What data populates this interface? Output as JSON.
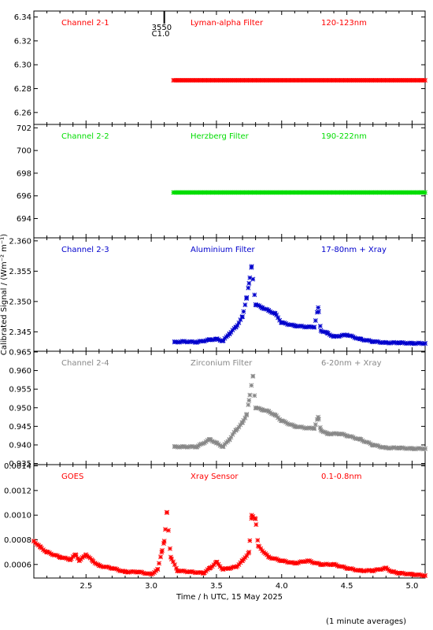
{
  "chart_data": [
    {
      "type": "scatter",
      "channel": "Channel 2-1",
      "filter": "Lyman-alpha Filter",
      "band": "120-123nm",
      "color": "#ff0000",
      "ylim": [
        6.25,
        6.345
      ],
      "yticks": [
        "6.34",
        "6.32",
        "6.30",
        "6.28",
        "6.26"
      ],
      "marker": {
        "x": 3.1,
        "labels": [
          "3550",
          "C1.0"
        ]
      },
      "series": [
        {
          "x_start": 3.17,
          "x_end": 5.1,
          "values": [
            6.287,
            6.287
          ]
        }
      ]
    },
    {
      "type": "scatter",
      "channel": "Channel 2-2",
      "filter": "Herzberg Filter",
      "band": "190-222nm",
      "color": "#00dd00",
      "ylim": [
        692.3,
        702.3
      ],
      "yticks": [
        "702",
        "700",
        "698",
        "696",
        "694"
      ],
      "series": [
        {
          "x_start": 3.17,
          "x_end": 5.1,
          "values": [
            696.3,
            696.3
          ]
        }
      ]
    },
    {
      "type": "scatter",
      "channel": "Channel 2-3",
      "filter": "Aluminium Filter",
      "band": "17-80nm + Xray",
      "color": "#0000cc",
      "ylim": [
        2.3418,
        2.3605
      ],
      "yticks": [
        "2.360",
        "2.355",
        "2.350",
        "2.345"
      ],
      "points": [
        [
          3.18,
          2.3433
        ],
        [
          3.25,
          2.3434
        ],
        [
          3.35,
          2.3433
        ],
        [
          3.45,
          2.3437
        ],
        [
          3.5,
          2.3438
        ],
        [
          3.55,
          2.3435
        ],
        [
          3.6,
          2.3447
        ],
        [
          3.65,
          2.3458
        ],
        [
          3.7,
          2.3475
        ],
        [
          3.73,
          2.3505
        ],
        [
          3.75,
          2.353
        ],
        [
          3.77,
          2.3558
        ],
        [
          3.8,
          2.3495
        ],
        [
          3.85,
          2.349
        ],
        [
          3.9,
          2.3485
        ],
        [
          3.95,
          2.348
        ],
        [
          4.0,
          2.3465
        ],
        [
          4.1,
          2.346
        ],
        [
          4.2,
          2.3458
        ],
        [
          4.25,
          2.3458
        ],
        [
          4.28,
          2.349
        ],
        [
          4.3,
          2.3452
        ],
        [
          4.35,
          2.3448
        ],
        [
          4.4,
          2.3442
        ],
        [
          4.5,
          2.3445
        ],
        [
          4.6,
          2.3438
        ],
        [
          4.7,
          2.3434
        ],
        [
          4.8,
          2.3432
        ],
        [
          4.9,
          2.3432
        ],
        [
          5.0,
          2.3431
        ],
        [
          5.1,
          2.3431
        ]
      ]
    },
    {
      "type": "scatter",
      "channel": "Channel 2-4",
      "filter": "Zirconium Filter",
      "band": "6-20nm + Xray",
      "color": "#888888",
      "ylim": [
        0.9347,
        0.9652
      ],
      "yticks": [
        "0.965",
        "0.960",
        "0.955",
        "0.950",
        "0.945",
        "0.940",
        "0.935"
      ],
      "points": [
        [
          3.18,
          0.9395
        ],
        [
          3.25,
          0.9395
        ],
        [
          3.35,
          0.9395
        ],
        [
          3.45,
          0.9415
        ],
        [
          3.5,
          0.9405
        ],
        [
          3.55,
          0.9395
        ],
        [
          3.6,
          0.9415
        ],
        [
          3.65,
          0.944
        ],
        [
          3.7,
          0.946
        ],
        [
          3.73,
          0.948
        ],
        [
          3.75,
          0.952
        ],
        [
          3.78,
          0.9585
        ],
        [
          3.8,
          0.95
        ],
        [
          3.85,
          0.9495
        ],
        [
          3.9,
          0.949
        ],
        [
          3.95,
          0.948
        ],
        [
          4.0,
          0.9465
        ],
        [
          4.1,
          0.945
        ],
        [
          4.2,
          0.9445
        ],
        [
          4.25,
          0.9445
        ],
        [
          4.28,
          0.9475
        ],
        [
          4.3,
          0.944
        ],
        [
          4.35,
          0.943
        ],
        [
          4.45,
          0.943
        ],
        [
          4.5,
          0.9425
        ],
        [
          4.6,
          0.9415
        ],
        [
          4.7,
          0.94
        ],
        [
          4.8,
          0.9392
        ],
        [
          4.9,
          0.9392
        ],
        [
          5.0,
          0.939
        ],
        [
          5.1,
          0.939
        ]
      ]
    },
    {
      "type": "scatter",
      "channel": "GOES",
      "filter": "Xray Sensor",
      "band": "0.1-0.8nm",
      "color": "#ff0000",
      "ylim": [
        0.00049,
        0.00141
      ],
      "yticks": [
        "0.0014",
        "0.0012",
        "0.0010",
        "0.0008",
        "0.0006"
      ],
      "points": [
        [
          2.1,
          0.00079
        ],
        [
          2.15,
          0.00074
        ],
        [
          2.2,
          0.0007
        ],
        [
          2.3,
          0.00066
        ],
        [
          2.38,
          0.00064
        ],
        [
          2.42,
          0.00068
        ],
        [
          2.45,
          0.00063
        ],
        [
          2.5,
          0.00068
        ],
        [
          2.55,
          0.00063
        ],
        [
          2.6,
          0.00059
        ],
        [
          2.7,
          0.00057
        ],
        [
          2.8,
          0.00054
        ],
        [
          2.9,
          0.00054
        ],
        [
          3.0,
          0.00052
        ],
        [
          3.05,
          0.00056
        ],
        [
          3.08,
          0.0007
        ],
        [
          3.1,
          0.00079
        ],
        [
          3.12,
          0.00102
        ],
        [
          3.15,
          0.00066
        ],
        [
          3.2,
          0.00055
        ],
        [
          3.3,
          0.00054
        ],
        [
          3.4,
          0.00053
        ],
        [
          3.45,
          0.00057
        ],
        [
          3.5,
          0.00062
        ],
        [
          3.55,
          0.00056
        ],
        [
          3.6,
          0.00057
        ],
        [
          3.65,
          0.00058
        ],
        [
          3.7,
          0.00063
        ],
        [
          3.75,
          0.0007
        ],
        [
          3.77,
          0.001
        ],
        [
          3.8,
          0.00097
        ],
        [
          3.82,
          0.00075
        ],
        [
          3.9,
          0.00066
        ],
        [
          4.0,
          0.00063
        ],
        [
          4.1,
          0.00061
        ],
        [
          4.2,
          0.00063
        ],
        [
          4.3,
          0.0006
        ],
        [
          4.4,
          0.0006
        ],
        [
          4.5,
          0.00057
        ],
        [
          4.6,
          0.00055
        ],
        [
          4.7,
          0.00055
        ],
        [
          4.8,
          0.00057
        ],
        [
          4.85,
          0.00054
        ],
        [
          4.9,
          0.00053
        ],
        [
          5.0,
          0.00052
        ],
        [
          5.1,
          0.00051
        ]
      ]
    }
  ],
  "ylabel": "Calibrated Signal / (Wm⁻² m⁻¹)",
  "xlabel": "Time / h UTC, 15 May 2025",
  "xlim": [
    2.1,
    5.1
  ],
  "xticks": [
    "2.5",
    "3.0",
    "3.5",
    "4.0",
    "4.5",
    "5.0"
  ],
  "footnote": "(1 minute averages)",
  "ylabel_text": "Calibrated Signal / (Wm ",
  "ylabel_unit": "m )"
}
